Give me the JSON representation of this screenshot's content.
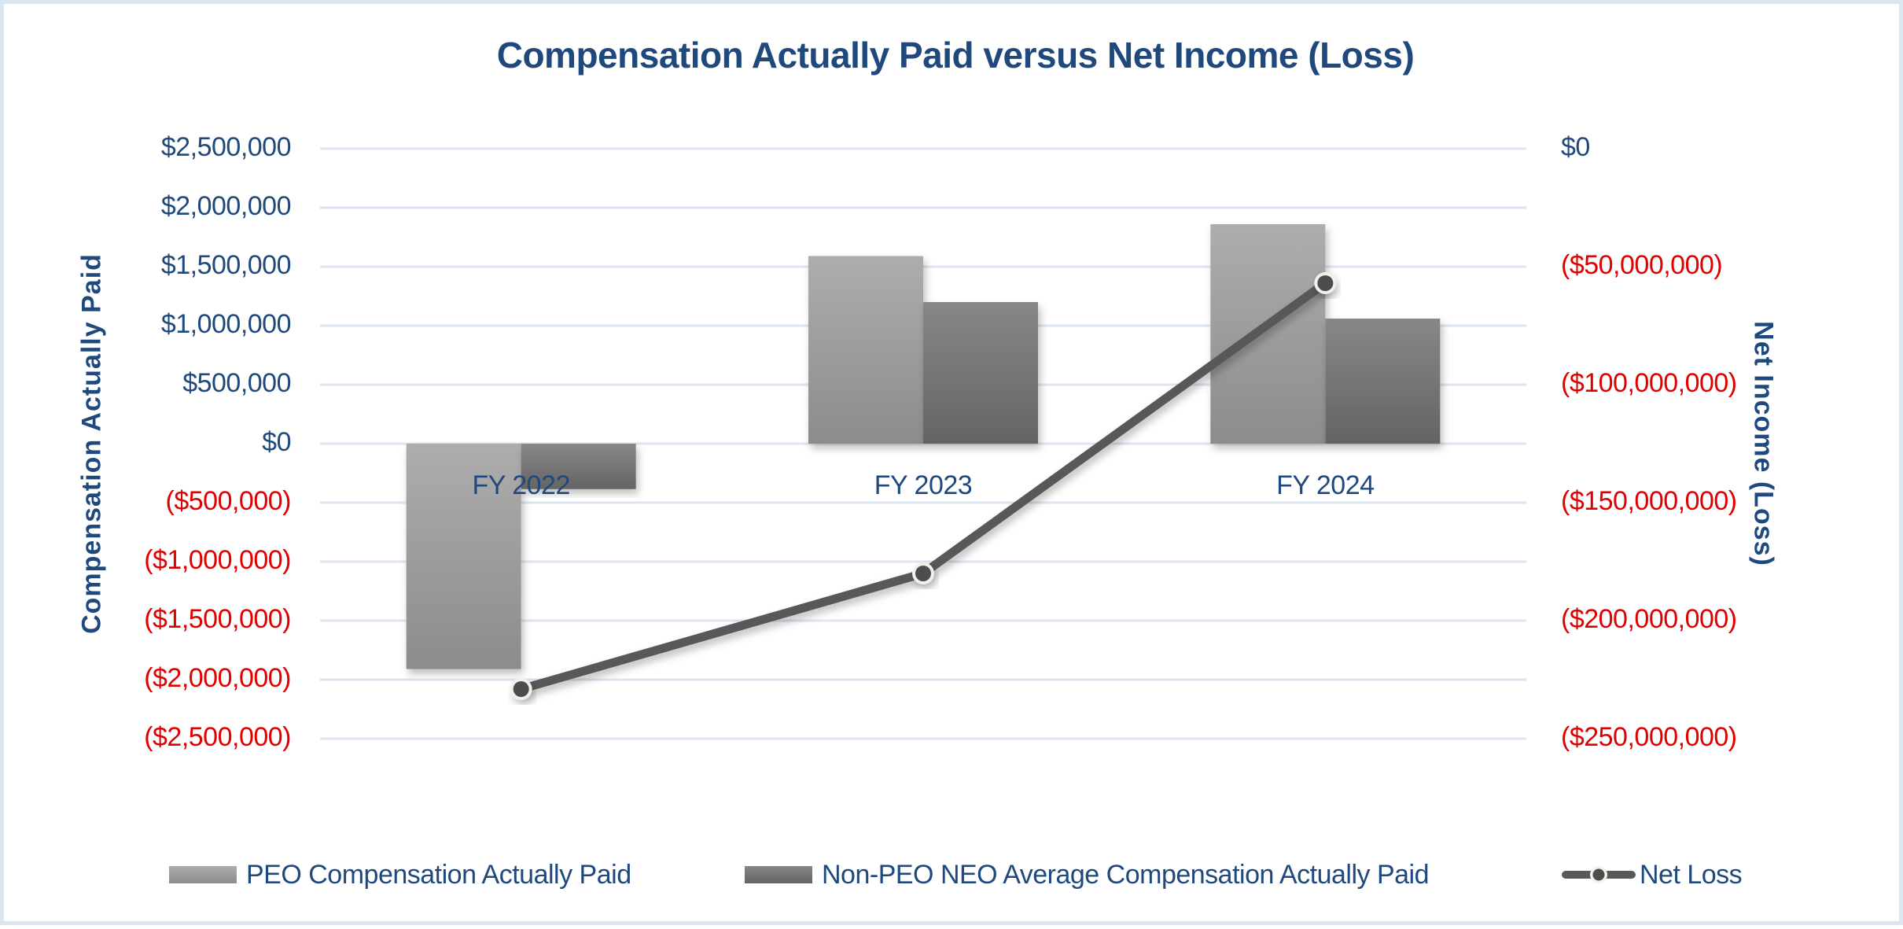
{
  "chart_data": {
    "type": "bar",
    "title": "Compensation Actually Paid versus Net Income (Loss)",
    "categories": [
      "FY 2022",
      "FY 2023",
      "FY 2024"
    ],
    "series": [
      {
        "name": "PEO Compensation Actually Paid",
        "type": "bar",
        "axis": "left",
        "values": [
          -1910000,
          1590000,
          1860000
        ],
        "color": "#a6a6a6"
      },
      {
        "name": "Non-PEO NEO Average Compensation Actually Paid",
        "type": "bar",
        "axis": "left",
        "values": [
          -385000,
          1200000,
          1060000
        ],
        "color": "#7f7f7f"
      },
      {
        "name": "Net Loss",
        "type": "line",
        "axis": "right",
        "values": [
          -229000000,
          -180000000,
          -57000000
        ],
        "color": "#595959"
      }
    ],
    "ylabel": "Compensation Actually Paid",
    "y2label": "Net Income (Loss)",
    "xlabel": "",
    "ylim": [
      -2500000,
      2500000
    ],
    "y2lim": [
      -250000000,
      0
    ],
    "y_ticks": [
      "$2,500,000",
      "$2,000,000",
      "$1,500,000",
      "$1,000,000",
      "$500,000",
      "$0",
      "($500,000)",
      "($1,000,000)",
      "($1,500,000)",
      "($2,000,000)",
      "($2,500,000)"
    ],
    "y2_ticks": [
      "$0",
      "($50,000,000)",
      "($100,000,000)",
      "($150,000,000)",
      "($200,000,000)",
      "($250,000,000)"
    ],
    "grid": true,
    "legend_position": "bottom"
  },
  "colors": {
    "title": "#1f497d",
    "positive_tick": "#1f497d",
    "negative_tick": "#e00000",
    "grid": "#dce6f2",
    "peo_bar": "#a6a6a6",
    "neo_bar": "#7f7f7f",
    "line": "#595959"
  },
  "legend": {
    "peo": "PEO Compensation Actually Paid",
    "neo": "Non-PEO NEO Average Compensation Actually Paid",
    "net_loss": "Net Loss"
  }
}
